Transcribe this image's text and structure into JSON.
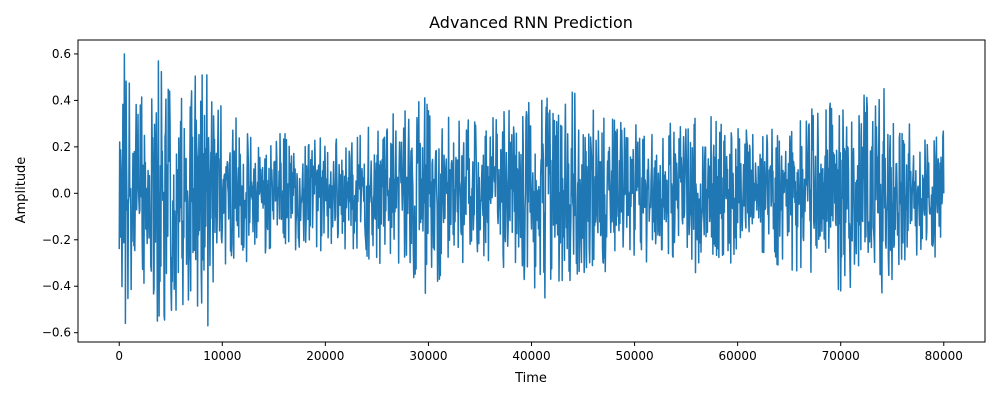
{
  "chart_data": {
    "type": "line",
    "title": "Advanced RNN Prediction",
    "xlabel": "Time",
    "ylabel": "Amplitude",
    "xlim": [
      -4000,
      84000
    ],
    "ylim": [
      -0.64,
      0.66
    ],
    "xticks": [
      0,
      10000,
      20000,
      30000,
      40000,
      50000,
      60000,
      70000,
      80000
    ],
    "yticks": [
      -0.6,
      -0.4,
      -0.2,
      0.0,
      0.2,
      0.4,
      0.6
    ],
    "xtick_labels": [
      "0",
      "10000",
      "20000",
      "30000",
      "40000",
      "50000",
      "60000",
      "70000",
      "80000"
    ],
    "ytick_labels": [
      "−0.6",
      "−0.4",
      "−0.2",
      "0.0",
      "0.2",
      "0.4",
      "0.6"
    ],
    "grid": false,
    "series": [
      {
        "color": "#1f77b4",
        "x_start": 0,
        "x_end": 80000,
        "envelope": [
          {
            "x": 0,
            "amp": 0.25
          },
          {
            "x": 500,
            "amp": 0.6
          },
          {
            "x": 2000,
            "amp": 0.5
          },
          {
            "x": 3700,
            "amp": 0.57
          },
          {
            "x": 6000,
            "amp": 0.5
          },
          {
            "x": 8500,
            "amp": 0.57
          },
          {
            "x": 10000,
            "amp": 0.45
          },
          {
            "x": 11500,
            "amp": 0.32
          },
          {
            "x": 14000,
            "amp": 0.27
          },
          {
            "x": 20000,
            "amp": 0.25
          },
          {
            "x": 25000,
            "amp": 0.32
          },
          {
            "x": 30000,
            "amp": 0.42
          },
          {
            "x": 35000,
            "amp": 0.3
          },
          {
            "x": 40000,
            "amp": 0.42
          },
          {
            "x": 44000,
            "amp": 0.44
          },
          {
            "x": 50000,
            "amp": 0.3
          },
          {
            "x": 57000,
            "amp": 0.35
          },
          {
            "x": 62000,
            "amp": 0.28
          },
          {
            "x": 68000,
            "amp": 0.38
          },
          {
            "x": 70000,
            "amp": 0.42
          },
          {
            "x": 74000,
            "amp": 0.45
          },
          {
            "x": 76000,
            "amp": 0.3
          },
          {
            "x": 80000,
            "amp": 0.3
          }
        ],
        "notable_points": [
          {
            "x": 0,
            "y": -0.24
          },
          {
            "x": 500,
            "y": 0.6
          },
          {
            "x": 600,
            "y": -0.56
          },
          {
            "x": 3700,
            "y": -0.55
          },
          {
            "x": 3800,
            "y": 0.57
          },
          {
            "x": 8500,
            "y": 0.51
          },
          {
            "x": 8600,
            "y": -0.57
          },
          {
            "x": 29700,
            "y": -0.43
          },
          {
            "x": 41300,
            "y": -0.45
          },
          {
            "x": 41000,
            "y": 0.4
          },
          {
            "x": 44200,
            "y": 0.43
          },
          {
            "x": 70000,
            "y": -0.42
          },
          {
            "x": 74200,
            "y": 0.45
          },
          {
            "x": 80000,
            "y": 0.0
          }
        ]
      }
    ]
  }
}
